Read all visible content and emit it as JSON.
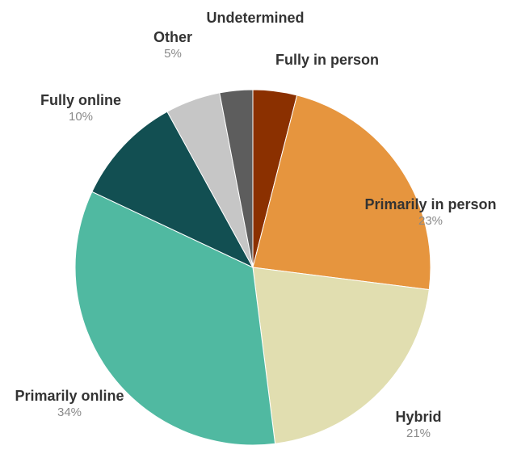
{
  "chart_data": {
    "type": "pie",
    "title": "",
    "series": [
      {
        "slices": [
          {
            "label": "Fully in person",
            "value": 4,
            "value_label": "",
            "color": "#8b3000"
          },
          {
            "label": "Primarily in person",
            "value": 23,
            "value_label": "23%",
            "color": "#e6953e"
          },
          {
            "label": "Hybrid",
            "value": 21,
            "value_label": "21%",
            "color": "#e1deb0"
          },
          {
            "label": "Primarily online",
            "value": 34,
            "value_label": "34%",
            "color": "#50b9a1"
          },
          {
            "label": "Fully online",
            "value": 10,
            "value_label": "10%",
            "color": "#124f52"
          },
          {
            "label": "Other",
            "value": 5,
            "value_label": "5%",
            "color": "#c6c6c6"
          },
          {
            "label": "Undetermined",
            "value": 3,
            "value_label": "",
            "color": "#5d5d5d"
          }
        ]
      }
    ],
    "legend": "none",
    "slice_order": "clockwise from 12 o'clock"
  }
}
